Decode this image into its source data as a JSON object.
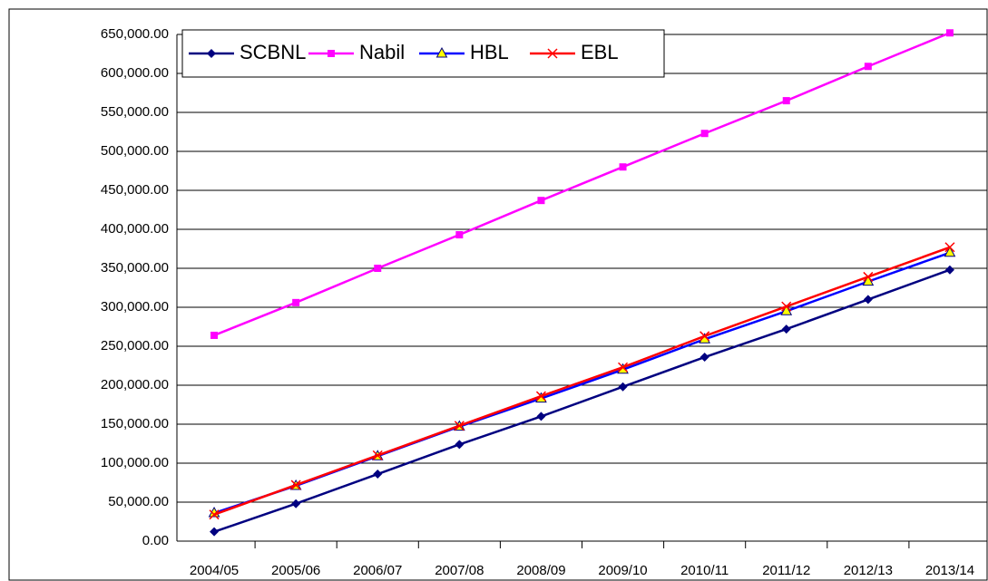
{
  "chart_data": {
    "type": "line",
    "categories": [
      "2004/05",
      "2005/06",
      "2006/07",
      "2007/08",
      "2008/09",
      "2009/10",
      "2010/11",
      "2011/12",
      "2012/13",
      "2013/14"
    ],
    "series": [
      {
        "name": "SCBNL",
        "color": "#000080",
        "marker": "diamond",
        "values": [
          12000,
          48000,
          86000,
          124000,
          160000,
          198000,
          236000,
          272000,
          310000,
          348000
        ]
      },
      {
        "name": "Nabil",
        "color": "#ff00ff",
        "marker": "square",
        "values": [
          264000,
          306000,
          350000,
          393000,
          437000,
          480000,
          523000,
          565000,
          609000,
          652000
        ]
      },
      {
        "name": "HBL",
        "color": "#0000ff",
        "marker": "triangle",
        "values": [
          36000,
          71000,
          109000,
          147000,
          183000,
          220000,
          259000,
          295000,
          333000,
          370000
        ]
      },
      {
        "name": "EBL",
        "color": "#ff0000",
        "marker": "x",
        "values": [
          34000,
          72000,
          110000,
          148000,
          186000,
          223000,
          263000,
          301000,
          339000,
          377000
        ]
      }
    ],
    "ylim": [
      0,
      650000
    ],
    "yticks": [
      {
        "value": 0,
        "label": "0.00"
      },
      {
        "value": 50000,
        "label": "50,000.00"
      },
      {
        "value": 100000,
        "label": "100,000.00"
      },
      {
        "value": 150000,
        "label": "150,000.00"
      },
      {
        "value": 200000,
        "label": "200,000.00"
      },
      {
        "value": 250000,
        "label": "250,000.00"
      },
      {
        "value": 300000,
        "label": "300,000.00"
      },
      {
        "value": 350000,
        "label": "350,000.00"
      },
      {
        "value": 400000,
        "label": "400,000.00"
      },
      {
        "value": 450000,
        "label": "450,000.00"
      },
      {
        "value": 500000,
        "label": "500,000.00"
      },
      {
        "value": 550000,
        "label": "550,000.00"
      },
      {
        "value": 600000,
        "label": "600,000.00"
      },
      {
        "value": 650000,
        "label": "650,000.00"
      }
    ],
    "grid": true,
    "legend": "top-left"
  }
}
